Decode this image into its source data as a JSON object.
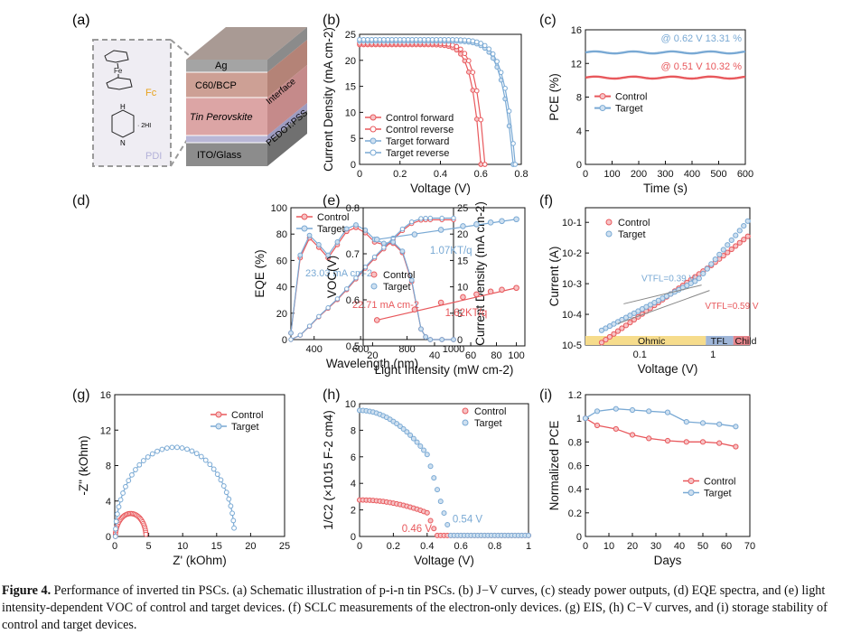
{
  "colors": {
    "control": "#e8585c",
    "target": "#79a9d4",
    "control_fill": "#f6c3c5",
    "target_fill": "#cfe0f0"
  },
  "caption": {
    "label": "Figure 4.",
    "text": "Performance of inverted tin PSCs. (a) Schematic illustration of p-i-n tin PSCs. (b) J−V curves, (c) steady power outputs, (d) EQE spectra, and (e) light intensity-dependent VOC of control and target devices. (f) SCLC measurements of the electron-only devices. (g) EIS, (h) C−V curves, and (i) storage stability of control and target devices."
  },
  "schematic": {
    "panel": "(a)",
    "molecule_fc": "Fc",
    "molecule_fe": "Fe",
    "molecule_pdi": "PDI",
    "salt": "· 2HI",
    "nh1": "H",
    "nh2": "N",
    "layers": [
      "Ag",
      "C60/BCP",
      "Tin Perovskite",
      "ITO/Glass"
    ],
    "side_labels": [
      "Interface",
      "PEDOT:PSS"
    ]
  },
  "chart_data": [
    {
      "id": "b",
      "panel": "(b)",
      "type": "scatter",
      "xlabel": "Voltage (V)",
      "ylabel": "Current Density (mA cm-2)",
      "xlim": [
        0,
        0.8
      ],
      "ylim": [
        0,
        25
      ],
      "xticks": [
        0,
        0.2,
        0.4,
        0.6,
        0.8
      ],
      "yticks": [
        0,
        5,
        10,
        15,
        20,
        25
      ],
      "legend": "bottom-left",
      "series": [
        {
          "name": "Control forward",
          "color": "control",
          "filled": true,
          "jsc": 23.0,
          "voc": 0.6,
          "n": 1.55
        },
        {
          "name": "Control reverse",
          "color": "control",
          "filled": false,
          "jsc": 23.3,
          "voc": 0.62,
          "n": 1.55
        },
        {
          "name": "Target forward",
          "color": "target",
          "filled": true,
          "jsc": 23.7,
          "voc": 0.76,
          "n": 1.5
        },
        {
          "name": "Target reverse",
          "color": "target",
          "filled": false,
          "jsc": 24.0,
          "voc": 0.77,
          "n": 1.5
        }
      ]
    },
    {
      "id": "c",
      "panel": "(c)",
      "type": "line",
      "xlabel": "Time (s)",
      "ylabel": "PCE (%)",
      "xlim": [
        0,
        600
      ],
      "ylim": [
        0,
        16
      ],
      "xticks": [
        0,
        100,
        200,
        300,
        400,
        500,
        600
      ],
      "yticks": [
        0,
        4,
        8,
        12,
        16
      ],
      "legend": "center-left",
      "series": [
        {
          "name": "Control",
          "color": "control",
          "value": 10.32
        },
        {
          "name": "Target",
          "color": "target",
          "value": 13.31
        }
      ],
      "annotations": [
        {
          "text": "@ 0.62 V 13.31 %",
          "color": "target"
        },
        {
          "text": "@ 0.51 V 10.32 %",
          "color": "control"
        }
      ]
    },
    {
      "id": "d",
      "panel": "(d)",
      "type": "line",
      "xlabel": "Wavelength (nm)",
      "ylabel": "EQE (%)",
      "ylabel2": "Current Density (mA cm-2)",
      "xlim": [
        300,
        1000
      ],
      "ylim": [
        0,
        100
      ],
      "ylim2": [
        0,
        25
      ],
      "xticks": [
        400,
        600,
        800,
        1000
      ],
      "yticks": [
        0,
        20,
        40,
        60,
        80,
        100
      ],
      "yticks2": [
        0,
        5,
        10,
        15,
        20,
        25
      ],
      "legend": "top-left",
      "series": [
        {
          "name": "Control",
          "color": "control",
          "x": [
            300,
            340,
            380,
            420,
            460,
            500,
            540,
            580,
            620,
            660,
            700,
            740,
            780,
            820,
            860,
            880,
            900,
            950,
            1000
          ],
          "values": [
            5,
            62,
            77,
            70,
            62,
            72,
            82,
            85,
            81,
            74,
            72,
            73,
            66,
            44,
            8,
            2,
            0,
            0,
            0
          ],
          "integrated_end": 22.71
        },
        {
          "name": "Target",
          "color": "target",
          "x": [
            300,
            340,
            380,
            420,
            460,
            500,
            540,
            580,
            620,
            660,
            700,
            740,
            780,
            820,
            860,
            880,
            900,
            950,
            1000
          ],
          "values": [
            5,
            64,
            79,
            72,
            64,
            74,
            84,
            87,
            83,
            76,
            73,
            74,
            67,
            45,
            8,
            2,
            0,
            0,
            0
          ],
          "integrated_end": 23.03
        }
      ],
      "annotations": [
        {
          "text": "23.03 mA cm-2",
          "color": "target"
        },
        {
          "text": "22.71 mA cm-2",
          "color": "control"
        }
      ]
    },
    {
      "id": "e",
      "panel": "(e)",
      "type": "scatter",
      "xlabel": "Light Intensity (mW cm-2)",
      "ylabel": "VOC(V)",
      "xscale": "log",
      "xlim": [
        18,
        110
      ],
      "ylim": [
        0.5,
        0.8
      ],
      "xticks": [
        20,
        40,
        60,
        80,
        100
      ],
      "yticks": [
        0.5,
        0.6,
        0.7,
        0.8
      ],
      "legend": "center-left",
      "series": [
        {
          "name": "Control",
          "color": "control",
          "x": [
            21,
            32,
            43,
            55,
            64,
            75,
            85,
            100
          ],
          "values": [
            0.556,
            0.579,
            0.594,
            0.606,
            0.612,
            0.618,
            0.622,
            0.626
          ]
        },
        {
          "name": "Target",
          "color": "target",
          "x": [
            21,
            32,
            43,
            55,
            64,
            75,
            85,
            100
          ],
          "values": [
            0.731,
            0.742,
            0.752,
            0.76,
            0.764,
            0.768,
            0.771,
            0.775
          ]
        }
      ],
      "annotations": [
        {
          "text": "1.07KT/q",
          "color": "target"
        },
        {
          "text": "1.62KT/q",
          "color": "control"
        }
      ]
    },
    {
      "id": "f",
      "panel": "(f)",
      "type": "scatter",
      "xlabel": "Voltage (V)",
      "ylabel": "Current (A)",
      "xscale": "log",
      "yscale": "log",
      "xlim": [
        0.018,
        3.2
      ],
      "ylim": [
        1e-05,
        0.3
      ],
      "xticks": [
        0.1,
        1
      ],
      "xticklabels": [
        "0.1",
        "1"
      ],
      "yticks": [
        1e-05,
        0.0001,
        0.001,
        0.01,
        0.1
      ],
      "yticklabels": [
        "10-5",
        "10-4",
        "10-3",
        "10-2",
        "10-1"
      ],
      "legend": "top-left",
      "regions": [
        "Ohmic",
        "TFL",
        "Child"
      ],
      "series": [
        {
          "name": "Control",
          "color": "control",
          "vtfl": 0.59,
          "i0": 1.2e-05,
          "ik": 0.0039,
          "iend": 0.035
        },
        {
          "name": "Target",
          "color": "target",
          "vtfl": 0.39,
          "i0": 3e-05,
          "ik": 0.00135,
          "iend": 0.11
        }
      ],
      "annotations": [
        {
          "text": "VTFL=0.39 V",
          "color": "target"
        },
        {
          "text": "VTFL=0.59 V",
          "color": "control"
        }
      ]
    },
    {
      "id": "g",
      "panel": "(g)",
      "type": "scatter",
      "xlabel": "Z' (kOhm)",
      "ylabel": "-Z\" (kOhm)",
      "xlim": [
        0,
        25
      ],
      "ylim": [
        0,
        16
      ],
      "xticks": [
        0,
        5,
        10,
        15,
        20,
        25
      ],
      "yticks": [
        0,
        4,
        8,
        12,
        16
      ],
      "legend": "top-right",
      "series": [
        {
          "name": "Control",
          "color": "control",
          "r0": 0.1,
          "r1": 4.6
        },
        {
          "name": "Target",
          "color": "target",
          "r0": 0.1,
          "r1": 17.6
        }
      ]
    },
    {
      "id": "h",
      "panel": "(h)",
      "type": "scatter",
      "xlabel": "Voltage (V)",
      "ylabel": "1/C2 (×1015 F-2 cm4)",
      "xlim": [
        0,
        1.0
      ],
      "ylim": [
        0,
        10
      ],
      "xticks": [
        0,
        0.2,
        0.4,
        0.6,
        0.8,
        1.0
      ],
      "yticks": [
        0,
        2,
        4,
        6,
        8,
        10
      ],
      "legend": "top-right",
      "series": [
        {
          "name": "Control",
          "color": "control",
          "c0": 2.75,
          "v_knee": 0.4,
          "vbi": 0.46
        },
        {
          "name": "Target",
          "color": "target",
          "c0": 9.5,
          "v_knee": 0.4,
          "vbi": 0.54
        }
      ],
      "annotations": [
        {
          "text": "0.46 V",
          "color": "control"
        },
        {
          "text": "0.54 V",
          "color": "target"
        }
      ]
    },
    {
      "id": "i",
      "panel": "(i)",
      "type": "line",
      "xlabel": "Days",
      "ylabel": "Normalized PCE",
      "xlim": [
        0,
        70
      ],
      "ylim": [
        0,
        1.2
      ],
      "xticks": [
        0,
        10,
        20,
        30,
        40,
        50,
        60,
        70
      ],
      "yticks": [
        0,
        0.2,
        0.4,
        0.6,
        0.8,
        1.0,
        1.2
      ],
      "legend": "bottom-right",
      "series": [
        {
          "name": "Control",
          "color": "control",
          "x": [
            0,
            5,
            13,
            20,
            27,
            35,
            43,
            50,
            57,
            64
          ],
          "values": [
            1.0,
            0.94,
            0.91,
            0.86,
            0.83,
            0.81,
            0.8,
            0.8,
            0.79,
            0.76
          ]
        },
        {
          "name": "Target",
          "color": "target",
          "x": [
            0,
            5,
            13,
            20,
            27,
            35,
            43,
            50,
            57,
            64
          ],
          "values": [
            1.0,
            1.06,
            1.08,
            1.07,
            1.06,
            1.05,
            0.97,
            0.96,
            0.95,
            0.93
          ]
        }
      ]
    }
  ]
}
